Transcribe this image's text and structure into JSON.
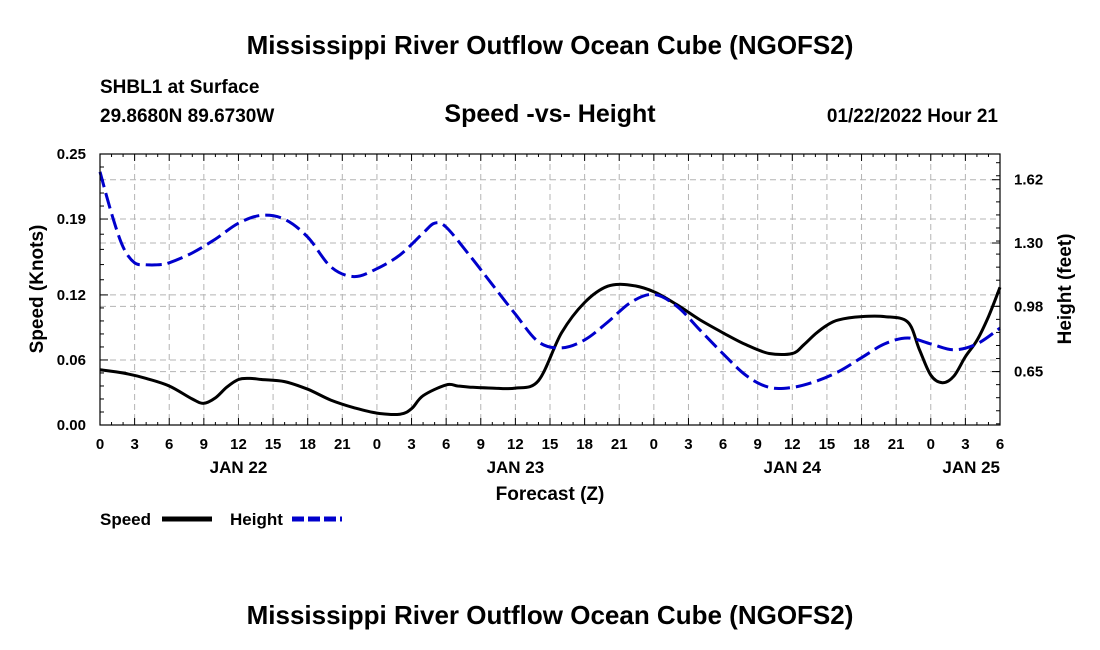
{
  "page": {
    "top_title": "Mississippi River Outflow Ocean Cube (NGOFS2)",
    "bottom_title": "Mississippi River Outflow Ocean Cube (NGOFS2)",
    "station": "SHBL1 at Surface",
    "coords": "29.8680N  89.6730W",
    "datetime": "01/22/2022 Hour 21"
  },
  "chart_data": {
    "type": "line",
    "title": "Speed -vs- Height",
    "xlabel": "Forecast (Z)",
    "ylabel": "Speed (Knots)",
    "y2label": "Height (feet)",
    "x_unit": "hours from 01/22/2022 00Z",
    "xlim": [
      0,
      78
    ],
    "ylim": [
      0,
      0.25
    ],
    "y2lim": [
      0.38,
      1.75
    ],
    "grid": true,
    "x_ticks": [
      0,
      3,
      6,
      9,
      12,
      15,
      18,
      21,
      24,
      27,
      30,
      33,
      36,
      39,
      42,
      45,
      48,
      51,
      54,
      57,
      60,
      63,
      66,
      69,
      72,
      75,
      78
    ],
    "x_tick_labels": [
      "0",
      "3",
      "6",
      "9",
      "12",
      "15",
      "18",
      "21",
      "0",
      "3",
      "6",
      "9",
      "12",
      "15",
      "18",
      "21",
      "0",
      "3",
      "6",
      "9",
      "12",
      "15",
      "18",
      "21",
      "0",
      "3",
      "6"
    ],
    "date_labels": [
      {
        "x": 12,
        "label": "JAN 22"
      },
      {
        "x": 36,
        "label": "JAN 23"
      },
      {
        "x": 60,
        "label": "JAN 24"
      },
      {
        "x": 78,
        "label": "JAN 25"
      }
    ],
    "y_ticks": [
      0.0,
      0.06,
      0.12,
      0.19,
      0.25
    ],
    "y_tick_labels": [
      "0.00",
      "0.06",
      "0.12",
      "0.19",
      "0.25"
    ],
    "y2_ticks": [
      0.65,
      0.98,
      1.3,
      1.62
    ],
    "y2_tick_labels": [
      "0.65",
      "0.98",
      "1.30",
      "1.62"
    ],
    "series": [
      {
        "name": "Speed",
        "axis": "left",
        "color": "#000000",
        "dash": "solid",
        "x": [
          0,
          2,
          4,
          6,
          8,
          9,
          10,
          11,
          12,
          13,
          14,
          16,
          18,
          20,
          22,
          24,
          26,
          27,
          28,
          30,
          31,
          32,
          34,
          36,
          38,
          40,
          42,
          44,
          46,
          48,
          50,
          52,
          54,
          56,
          58,
          60,
          61,
          62,
          63,
          64,
          66,
          68,
          70,
          71,
          72,
          73,
          74,
          75,
          76,
          77,
          78
        ],
        "values": [
          0.051,
          0.048,
          0.043,
          0.036,
          0.024,
          0.02,
          0.025,
          0.035,
          0.042,
          0.043,
          0.042,
          0.04,
          0.033,
          0.023,
          0.016,
          0.011,
          0.01,
          0.015,
          0.027,
          0.037,
          0.036,
          0.035,
          0.034,
          0.034,
          0.041,
          0.085,
          0.113,
          0.128,
          0.129,
          0.123,
          0.111,
          0.097,
          0.085,
          0.074,
          0.066,
          0.066,
          0.074,
          0.084,
          0.092,
          0.097,
          0.1,
          0.1,
          0.095,
          0.07,
          0.046,
          0.039,
          0.045,
          0.063,
          0.078,
          0.1,
          0.127
        ]
      },
      {
        "name": "Height",
        "axis": "right",
        "color": "#0000cc",
        "dash": "dashed",
        "x": [
          0,
          1,
          2,
          3,
          4,
          5,
          6,
          8,
          10,
          12,
          14,
          16,
          18,
          20,
          22,
          24,
          26,
          28,
          29,
          30,
          32,
          34,
          36,
          38,
          40,
          42,
          44,
          46,
          48,
          50,
          52,
          54,
          56,
          58,
          60,
          62,
          64,
          66,
          68,
          70,
          72,
          74,
          76,
          78
        ],
        "values": [
          1.66,
          1.45,
          1.28,
          1.2,
          1.19,
          1.19,
          1.2,
          1.25,
          1.32,
          1.4,
          1.44,
          1.42,
          1.33,
          1.18,
          1.13,
          1.17,
          1.24,
          1.35,
          1.4,
          1.38,
          1.24,
          1.09,
          0.94,
          0.8,
          0.77,
          0.81,
          0.9,
          1.0,
          1.04,
          0.98,
          0.86,
          0.74,
          0.63,
          0.57,
          0.57,
          0.6,
          0.65,
          0.72,
          0.79,
          0.82,
          0.79,
          0.76,
          0.79,
          0.87
        ]
      }
    ],
    "legend": {
      "position": "bottom-left",
      "speed_label": "Speed",
      "height_label": "Height"
    }
  }
}
